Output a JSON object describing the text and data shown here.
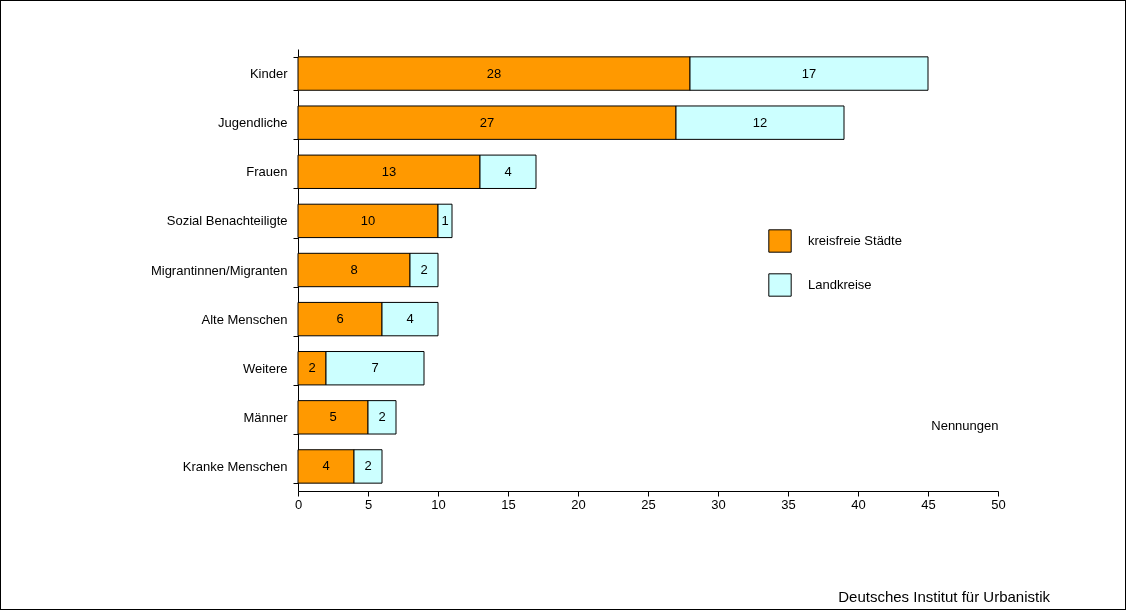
{
  "chart_data": {
    "type": "bar",
    "orientation": "horizontal",
    "stacked": true,
    "categories": [
      "Kinder",
      "Jugendliche",
      "Frauen",
      "Sozial Benachteiligte",
      "Migrantinnen/Migranten",
      "Alte Menschen",
      "Weitere",
      "Männer",
      "Kranke Menschen"
    ],
    "series": [
      {
        "name": "kreisfreie Städte",
        "color": "#ff9900",
        "values": [
          28,
          27,
          13,
          10,
          8,
          6,
          2,
          5,
          4
        ]
      },
      {
        "name": "Landkreise",
        "color": "#ccffff",
        "values": [
          17,
          12,
          4,
          1,
          2,
          4,
          7,
          2,
          2
        ]
      }
    ],
    "xlim": [
      0,
      50
    ],
    "xticks": [
      0,
      5,
      10,
      15,
      20,
      25,
      30,
      35,
      40,
      45,
      50
    ],
    "xlabel": "Nennungen",
    "data_labels": true,
    "grid": false,
    "legend": "right",
    "annotations": [
      "Deutsches Institut für Urbanistik"
    ]
  }
}
